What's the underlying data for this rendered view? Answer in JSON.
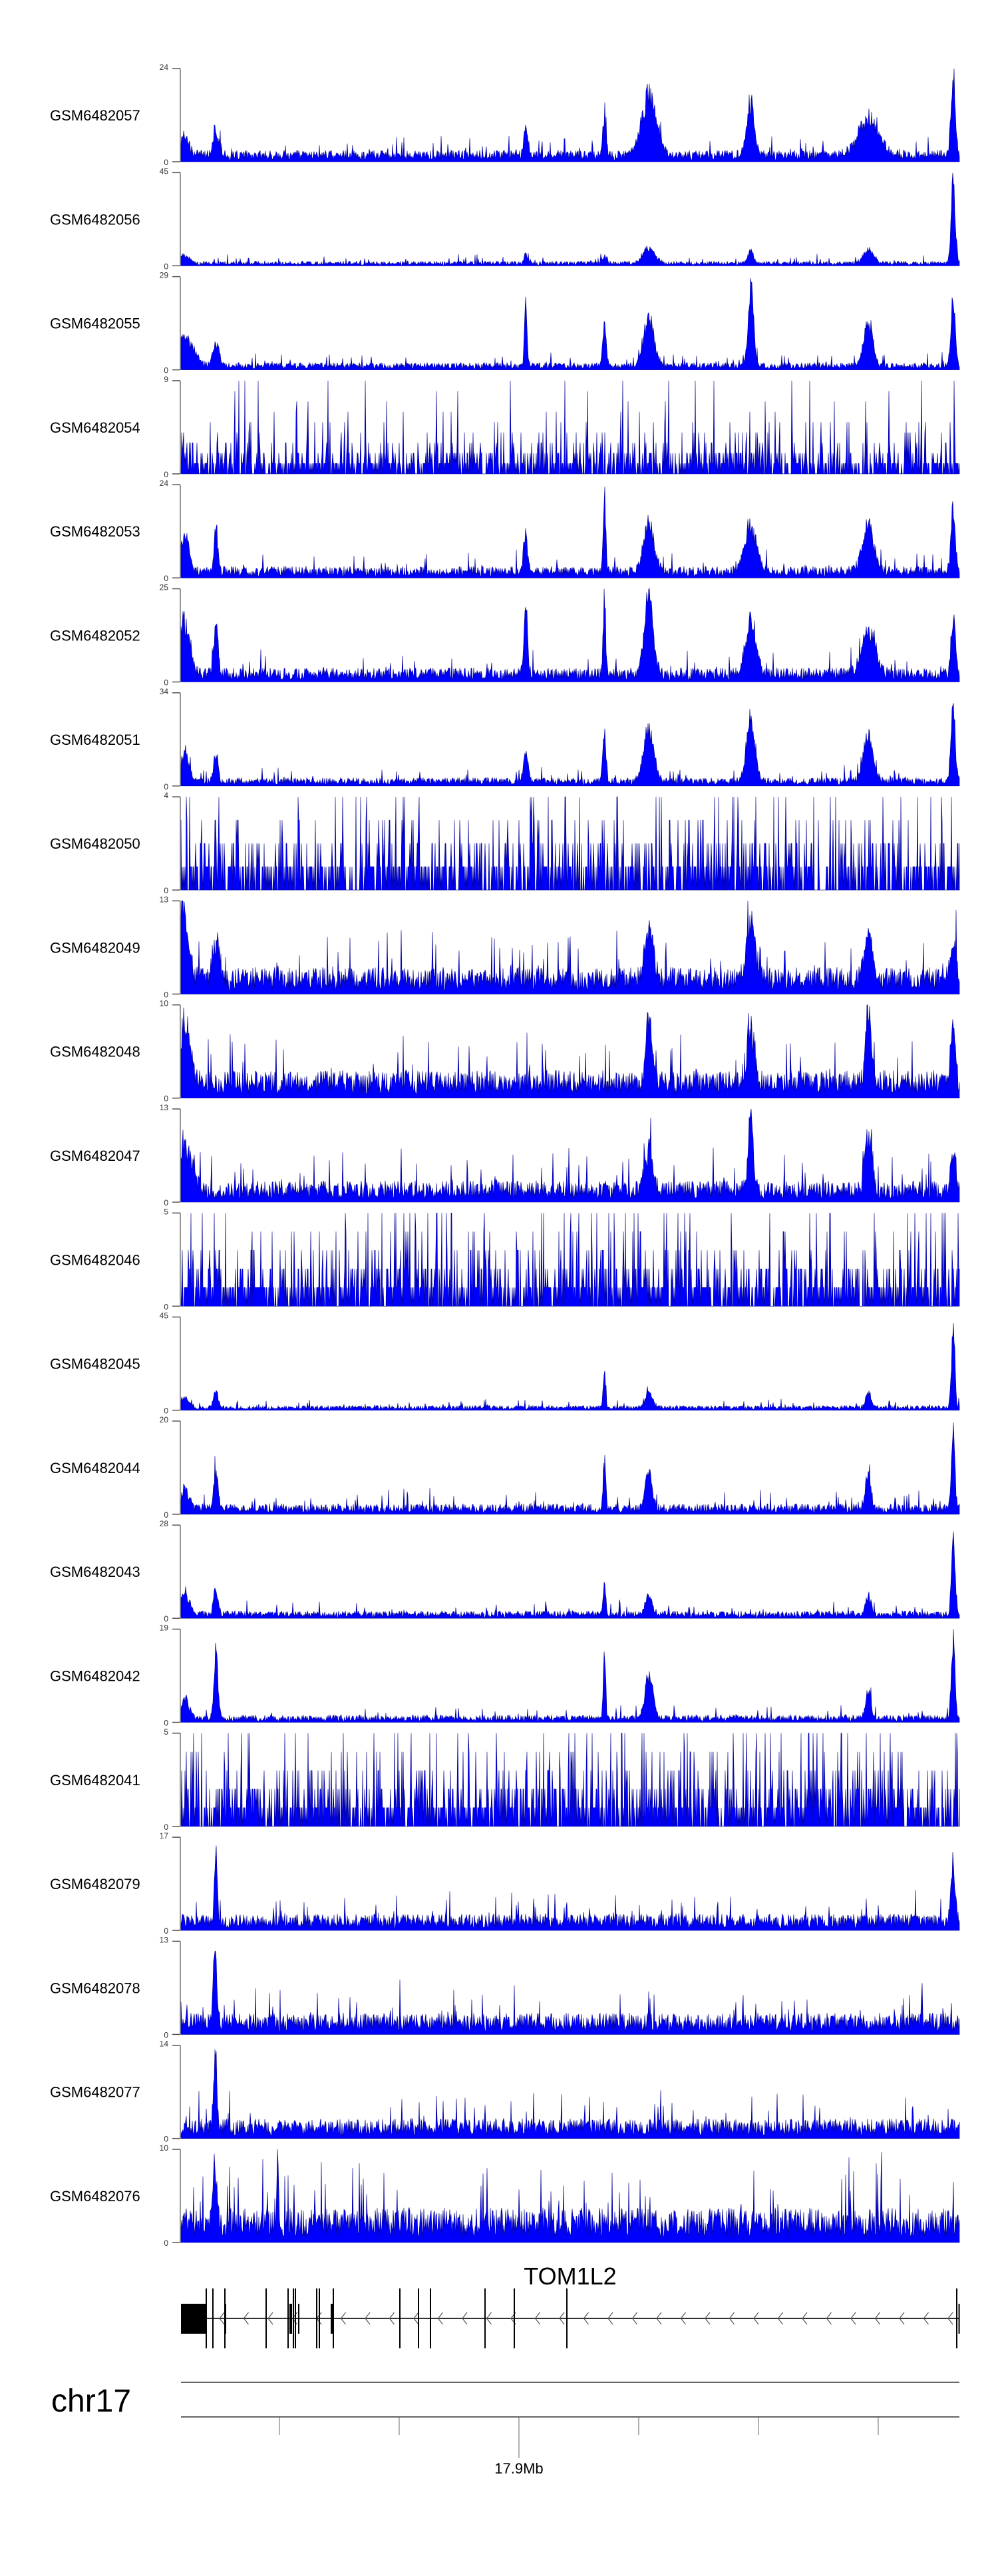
{
  "chart_data": {
    "type": "area",
    "title": "",
    "chromosome": "chr17",
    "region_bp": [
      17871780,
      17936780
    ],
    "fill_color": "#0000FF",
    "line_color": "#00008B",
    "tracks": [
      {
        "name": "GSM6482057",
        "ylim": [
          0,
          24
        ],
        "ymax_label": "24",
        "ymin_label": "0",
        "style": "peaks",
        "base": 2,
        "peaks": [
          [
            17872100,
            6,
            500
          ],
          [
            17874700,
            6,
            400
          ],
          [
            17900570,
            8,
            250
          ],
          [
            17907140,
            13,
            180
          ],
          [
            17910850,
            18,
            900
          ],
          [
            17919360,
            16,
            450
          ],
          [
            17929170,
            11,
            1200
          ],
          [
            17936260,
            24,
            250
          ]
        ]
      },
      {
        "name": "GSM6482056",
        "ylim": [
          0,
          45
        ],
        "ymax_label": "45",
        "ymin_label": "0",
        "style": "peaks",
        "base": 1.5,
        "peaks": [
          [
            17872100,
            4,
            600
          ],
          [
            17900570,
            5,
            200
          ],
          [
            17907140,
            5,
            250
          ],
          [
            17910850,
            9,
            700
          ],
          [
            17919360,
            8,
            300
          ],
          [
            17929170,
            8,
            600
          ],
          [
            17936260,
            45,
            250
          ]
        ]
      },
      {
        "name": "GSM6482055",
        "ylim": [
          0,
          29
        ],
        "ymax_label": "29",
        "ymin_label": "0",
        "style": "peaks",
        "base": 1.5,
        "peaks": [
          [
            17872100,
            11,
            1000
          ],
          [
            17874700,
            8,
            400
          ],
          [
            17900570,
            25,
            150
          ],
          [
            17907140,
            17,
            200
          ],
          [
            17910850,
            18,
            600
          ],
          [
            17919360,
            29,
            300
          ],
          [
            17929170,
            17,
            500
          ],
          [
            17936260,
            26,
            250
          ]
        ]
      },
      {
        "name": "GSM6482054",
        "ylim": [
          0,
          9
        ],
        "ymax_label": "9",
        "ymin_label": "0",
        "style": "spiky",
        "base": 1.4,
        "peaks": []
      },
      {
        "name": "GSM6482053",
        "ylim": [
          0,
          24
        ],
        "ymax_label": "24",
        "ymin_label": "0",
        "style": "peaks",
        "base": 2,
        "peaks": [
          [
            17872100,
            12,
            500
          ],
          [
            17874700,
            14,
            200
          ],
          [
            17900570,
            11,
            250
          ],
          [
            17907140,
            24,
            150
          ],
          [
            17910850,
            15,
            600
          ],
          [
            17919360,
            14,
            700
          ],
          [
            17929170,
            14,
            700
          ],
          [
            17936260,
            20,
            250
          ]
        ]
      },
      {
        "name": "GSM6482052",
        "ylim": [
          0,
          25
        ],
        "ymax_label": "25",
        "ymin_label": "0",
        "style": "peaks",
        "base": 2.5,
        "peaks": [
          [
            17872100,
            17,
            600
          ],
          [
            17874700,
            17,
            250
          ],
          [
            17900570,
            21,
            200
          ],
          [
            17907140,
            24,
            150
          ],
          [
            17910850,
            25,
            500
          ],
          [
            17919360,
            18,
            600
          ],
          [
            17929170,
            14,
            800
          ],
          [
            17936260,
            18,
            250
          ]
        ]
      },
      {
        "name": "GSM6482051",
        "ylim": [
          0,
          34
        ],
        "ymax_label": "34",
        "ymin_label": "0",
        "style": "peaks",
        "base": 2,
        "peaks": [
          [
            17872100,
            13,
            500
          ],
          [
            17874700,
            12,
            250
          ],
          [
            17900570,
            13,
            250
          ],
          [
            17907140,
            19,
            200
          ],
          [
            17910850,
            21,
            600
          ],
          [
            17919360,
            27,
            500
          ],
          [
            17929170,
            19,
            600
          ],
          [
            17936260,
            34,
            250
          ]
        ]
      },
      {
        "name": "GSM6482050",
        "ylim": [
          0,
          4
        ],
        "ymax_label": "4",
        "ymin_label": "0",
        "style": "spiky",
        "base": 1.0,
        "peaks": []
      },
      {
        "name": "GSM6482049",
        "ylim": [
          0,
          13
        ],
        "ymax_label": "13",
        "ymin_label": "0",
        "style": "peaks",
        "base": 2.5,
        "peaks": [
          [
            17871900,
            13,
            600
          ],
          [
            17874700,
            7,
            400
          ],
          [
            17910850,
            9,
            500
          ],
          [
            17919360,
            9,
            500
          ],
          [
            17929170,
            9,
            400
          ],
          [
            17936260,
            6,
            300
          ]
        ]
      },
      {
        "name": "GSM6482048",
        "ylim": [
          0,
          10
        ],
        "ymax_label": "10",
        "ymin_label": "0",
        "style": "peaks",
        "base": 2,
        "peaks": [
          [
            17872100,
            8,
            600
          ],
          [
            17910850,
            8,
            400
          ],
          [
            17919360,
            6,
            500
          ],
          [
            17929170,
            10,
            300
          ],
          [
            17936260,
            8,
            250
          ]
        ]
      },
      {
        "name": "GSM6482047",
        "ylim": [
          0,
          13
        ],
        "ymax_label": "13",
        "ymin_label": "0",
        "style": "peaks",
        "base": 2,
        "peaks": [
          [
            17872100,
            7,
            800
          ],
          [
            17910850,
            7,
            500
          ],
          [
            17919360,
            13,
            300
          ],
          [
            17929170,
            9,
            400
          ],
          [
            17936260,
            7,
            300
          ]
        ]
      },
      {
        "name": "GSM6482046",
        "ylim": [
          0,
          5
        ],
        "ymax_label": "5",
        "ymin_label": "0",
        "style": "spiky",
        "base": 1.3,
        "peaks": []
      },
      {
        "name": "GSM6482045",
        "ylim": [
          0,
          45
        ],
        "ymax_label": "45",
        "ymin_label": "0",
        "style": "peaks",
        "base": 1.5,
        "peaks": [
          [
            17872100,
            6,
            500
          ],
          [
            17874700,
            10,
            250
          ],
          [
            17907140,
            19,
            150
          ],
          [
            17910850,
            9,
            400
          ],
          [
            17929170,
            9,
            300
          ],
          [
            17936260,
            45,
            200
          ]
        ]
      },
      {
        "name": "GSM6482044",
        "ylim": [
          0,
          20
        ],
        "ymax_label": "20",
        "ymin_label": "0",
        "style": "peaks",
        "base": 1.5,
        "peaks": [
          [
            17872100,
            5,
            500
          ],
          [
            17874700,
            10,
            250
          ],
          [
            17907140,
            12,
            150
          ],
          [
            17910850,
            10,
            400
          ],
          [
            17929170,
            9,
            300
          ],
          [
            17936260,
            20,
            200
          ]
        ]
      },
      {
        "name": "GSM6482043",
        "ylim": [
          0,
          28
        ],
        "ymax_label": "28",
        "ymin_label": "0",
        "style": "peaks",
        "base": 1.5,
        "peaks": [
          [
            17872100,
            8,
            500
          ],
          [
            17874700,
            9,
            250
          ],
          [
            17907140,
            11,
            150
          ],
          [
            17910850,
            7,
            400
          ],
          [
            17929170,
            7,
            300
          ],
          [
            17936260,
            28,
            200
          ]
        ]
      },
      {
        "name": "GSM6482042",
        "ylim": [
          0,
          19
        ],
        "ymax_label": "19",
        "ymin_label": "0",
        "style": "peaks",
        "base": 1,
        "peaks": [
          [
            17872100,
            5,
            500
          ],
          [
            17874700,
            14,
            250
          ],
          [
            17907140,
            19,
            130
          ],
          [
            17910850,
            11,
            450
          ],
          [
            17929170,
            7,
            300
          ],
          [
            17936260,
            19,
            200
          ]
        ]
      },
      {
        "name": "GSM6482041",
        "ylim": [
          0,
          5
        ],
        "ymax_label": "5",
        "ymin_label": "0",
        "style": "spiky",
        "base": 1.4,
        "peaks": []
      },
      {
        "name": "GSM6482079",
        "ylim": [
          0,
          17
        ],
        "ymax_label": "17",
        "ymin_label": "0",
        "style": "peaks",
        "base": 2,
        "peaks": [
          [
            17874700,
            17,
            150
          ],
          [
            17936260,
            12,
            250
          ]
        ]
      },
      {
        "name": "GSM6482078",
        "ylim": [
          0,
          13
        ],
        "ymax_label": "13",
        "ymin_label": "0",
        "style": "peaks",
        "base": 2,
        "peaks": [
          [
            17874600,
            13,
            200
          ]
        ]
      },
      {
        "name": "GSM6482077",
        "ylim": [
          0,
          14
        ],
        "ymax_label": "14",
        "ymin_label": "0",
        "style": "peaks",
        "base": 2,
        "peaks": [
          [
            17874650,
            14,
            180
          ]
        ]
      },
      {
        "name": "GSM6482076",
        "ylim": [
          0,
          10
        ],
        "ymax_label": "10",
        "ymin_label": "0",
        "style": "peaks",
        "base": 2.5,
        "peaks": [
          [
            17874600,
            9,
            200
          ],
          [
            17879850,
            10,
            100
          ]
        ]
      }
    ],
    "gene": {
      "name": "TOM1L2",
      "strand": "-",
      "exons": [
        [
          17871780,
          17873836,
          "short"
        ],
        [
          17873836,
          17873880,
          "tall"
        ],
        [
          17874391,
          17874430,
          "tall"
        ],
        [
          17875391,
          17875558,
          "short"
        ],
        [
          17875391,
          17875430,
          "tall"
        ],
        [
          17878836,
          17878875,
          "tall"
        ],
        [
          17880669,
          17880708,
          "tall"
        ],
        [
          17880836,
          17881058,
          "short"
        ],
        [
          17881113,
          17881152,
          "tall"
        ],
        [
          17881280,
          17881319,
          "tall"
        ],
        [
          17881558,
          17881597,
          "short"
        ],
        [
          17883058,
          17883097,
          "tall"
        ],
        [
          17883280,
          17883319,
          "tall"
        ],
        [
          17884280,
          17884447,
          "short"
        ],
        [
          17884447,
          17884486,
          "tall"
        ],
        [
          17890002,
          17890041,
          "tall"
        ],
        [
          17891558,
          17891597,
          "tall"
        ],
        [
          17892558,
          17892597,
          "tall"
        ],
        [
          17897113,
          17897152,
          "tall"
        ],
        [
          17899558,
          17899597,
          "tall"
        ],
        [
          17903947,
          17903986,
          "tall"
        ],
        [
          17936502,
          17936541,
          "tall"
        ],
        [
          17936700,
          17936780,
          "short"
        ]
      ]
    },
    "axis": {
      "ticks_bp": [
        17880000,
        17890000,
        17900000,
        17910000,
        17920000,
        17930000
      ],
      "labeled_tick_bp": 17900000,
      "labeled_tick": "17.9Mb"
    }
  }
}
